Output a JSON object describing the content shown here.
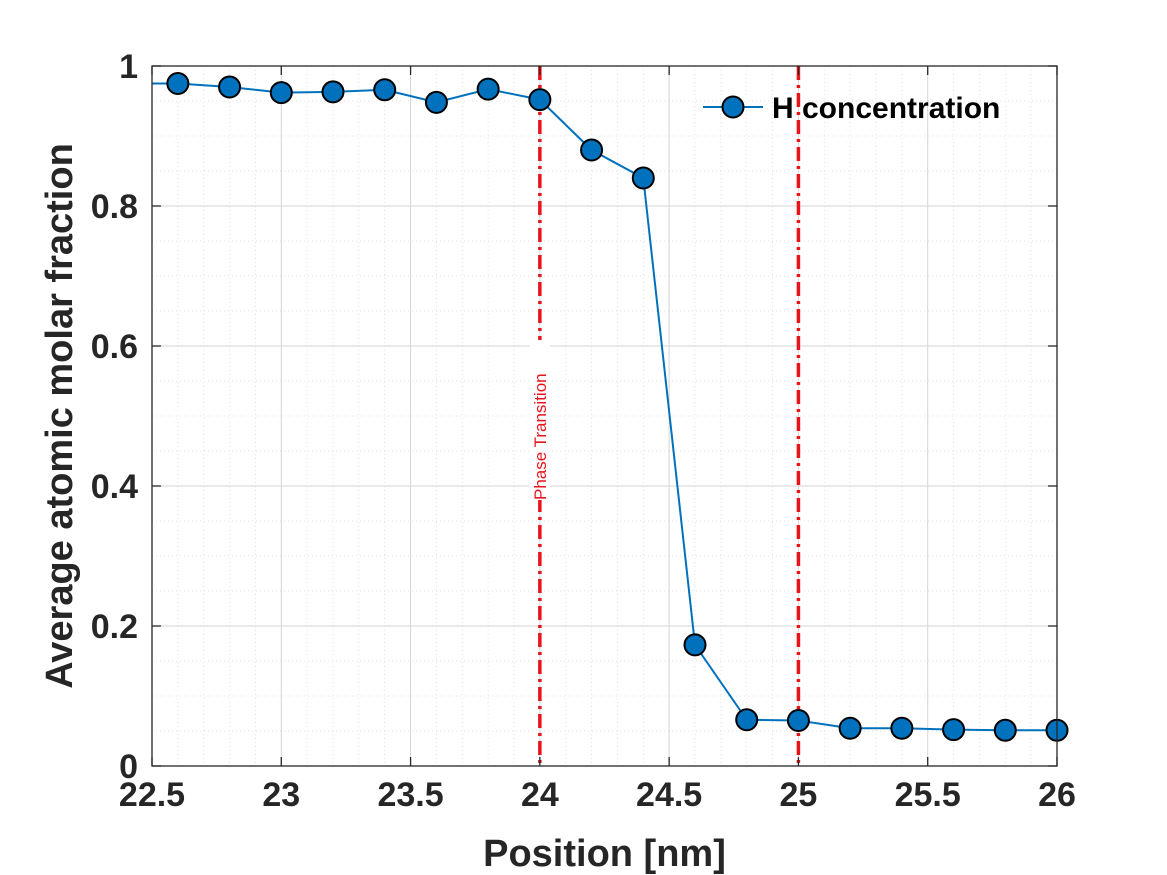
{
  "chart_data": {
    "type": "line",
    "title": "",
    "xlabel": "Position [nm]",
    "ylabel": "Average atomic molar fraction",
    "xlim": [
      22.5,
      26
    ],
    "ylim": [
      0,
      1
    ],
    "x_ticks": [
      22.5,
      23,
      23.5,
      24,
      24.5,
      25,
      25.5,
      26
    ],
    "x_tick_labels": [
      "22.5",
      "23",
      "23.5",
      "24",
      "24.5",
      "25",
      "25.5",
      "26"
    ],
    "y_ticks": [
      0,
      0.2,
      0.4,
      0.6,
      0.8,
      1
    ],
    "y_tick_labels": [
      "0",
      "0.2",
      "0.4",
      "0.6",
      "0.8",
      "1"
    ],
    "grid": true,
    "minor_grid": true,
    "legend_position": "top-right",
    "series": [
      {
        "name": "H concentration",
        "color": "#0072bd",
        "marker": "circle",
        "line_start": {
          "x": 22.5,
          "y": 0.975
        },
        "x": [
          22.6,
          22.8,
          23.0,
          23.2,
          23.4,
          23.6,
          23.8,
          24.0,
          24.2,
          24.4,
          24.6,
          24.8,
          25.0,
          25.2,
          25.4,
          25.6,
          25.8,
          26.0
        ],
        "values": [
          0.975,
          0.97,
          0.962,
          0.963,
          0.966,
          0.948,
          0.967,
          0.952,
          0.88,
          0.84,
          0.173,
          0.066,
          0.065,
          0.054,
          0.054,
          0.052,
          0.051,
          0.051
        ]
      }
    ],
    "vertical_lines": [
      {
        "x": 24,
        "color": "#e8141c",
        "style": "dash-dot",
        "label": "Phase Transition",
        "label_y": 0.38
      },
      {
        "x": 25,
        "color": "#e8141c",
        "style": "dash-dot"
      }
    ]
  }
}
